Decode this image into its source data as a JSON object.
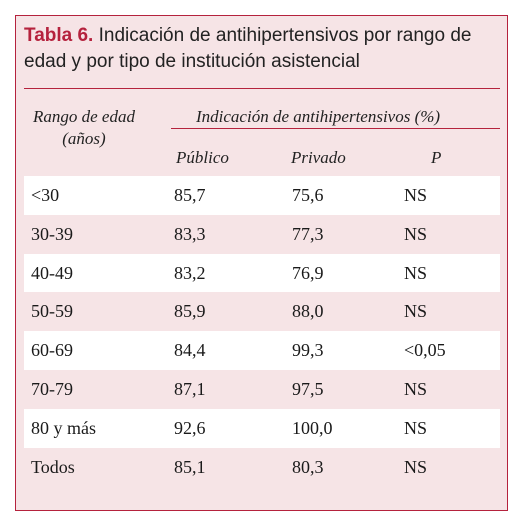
{
  "caption": {
    "lead": "Tabla 6.",
    "text": "Indicación de antihipertensivos por rango de edad y por tipo de institución asistencial"
  },
  "headers": {
    "range_line1": "Rango de edad",
    "range_line2": "(años)",
    "group": "Indicación de antihipertensivos (%)",
    "public": "Público",
    "private": "Privado",
    "p": "P"
  },
  "rows": [
    {
      "range": "<30",
      "public": "85,7",
      "private": "75,6",
      "p": "NS"
    },
    {
      "range": "30-39",
      "public": "83,3",
      "private": "77,3",
      "p": "NS"
    },
    {
      "range": "40-49",
      "public": "83,2",
      "private": "76,9",
      "p": "NS"
    },
    {
      "range": "50-59",
      "public": "85,9",
      "private": "88,0",
      "p": "NS"
    },
    {
      "range": "60-69",
      "public": "84,4",
      "private": "99,3",
      "p": "<0,05"
    },
    {
      "range": "70-79",
      "public": "87,1",
      "private": "97,5",
      "p": "NS"
    },
    {
      "range": "80 y más",
      "public": "92,6",
      "private": "100,0",
      "p": "NS"
    },
    {
      "range": "Todos",
      "public": "85,1",
      "private": "80,3",
      "p": "NS"
    }
  ]
}
